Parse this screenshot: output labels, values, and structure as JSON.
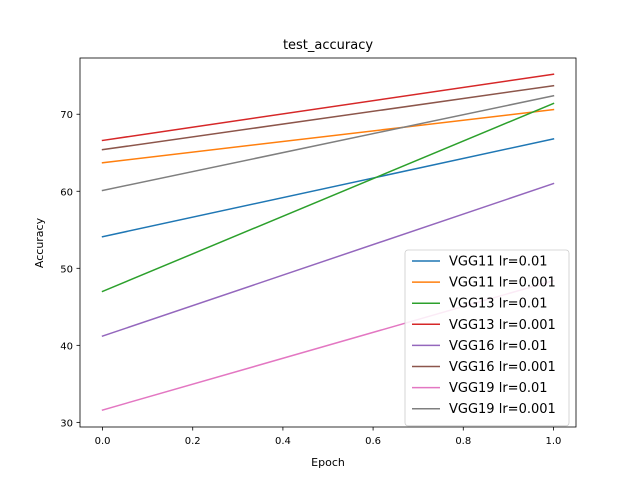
{
  "chart_data": {
    "type": "line",
    "title": "test_accuracy",
    "xlabel": "Epoch",
    "ylabel": "Accuracy",
    "x": [
      0.0,
      1.0
    ],
    "xlim": [
      -0.05,
      1.05
    ],
    "ylim": [
      29.4,
      77.3
    ],
    "xticks": [
      0.0,
      0.2,
      0.4,
      0.6,
      0.8,
      1.0
    ],
    "xtick_labels": [
      "0.0",
      "0.2",
      "0.4",
      "0.6",
      "0.8",
      "1.0"
    ],
    "yticks": [
      30,
      40,
      50,
      60,
      70
    ],
    "ytick_labels": [
      "30",
      "40",
      "50",
      "60",
      "70"
    ],
    "grid": false,
    "legend_position": "bottom-right",
    "series": [
      {
        "name": "VGG11 lr=0.01",
        "color": "#1f77b4",
        "values": [
          54.1,
          66.8
        ]
      },
      {
        "name": "VGG11 lr=0.001",
        "color": "#ff7f0e",
        "values": [
          63.7,
          70.6
        ]
      },
      {
        "name": "VGG13 lr=0.01",
        "color": "#2ca02c",
        "values": [
          47.0,
          71.4
        ]
      },
      {
        "name": "VGG13 lr=0.001",
        "color": "#d62728",
        "values": [
          66.6,
          75.2
        ]
      },
      {
        "name": "VGG16 lr=0.01",
        "color": "#9467bd",
        "values": [
          41.2,
          61.0
        ]
      },
      {
        "name": "VGG16 lr=0.001",
        "color": "#8c564b",
        "values": [
          65.4,
          73.7
        ]
      },
      {
        "name": "VGG19 lr=0.01",
        "color": "#e377c2",
        "values": [
          31.6,
          48.4
        ]
      },
      {
        "name": "VGG19 lr=0.001",
        "color": "#7f7f7f",
        "values": [
          60.1,
          72.4
        ]
      }
    ]
  }
}
